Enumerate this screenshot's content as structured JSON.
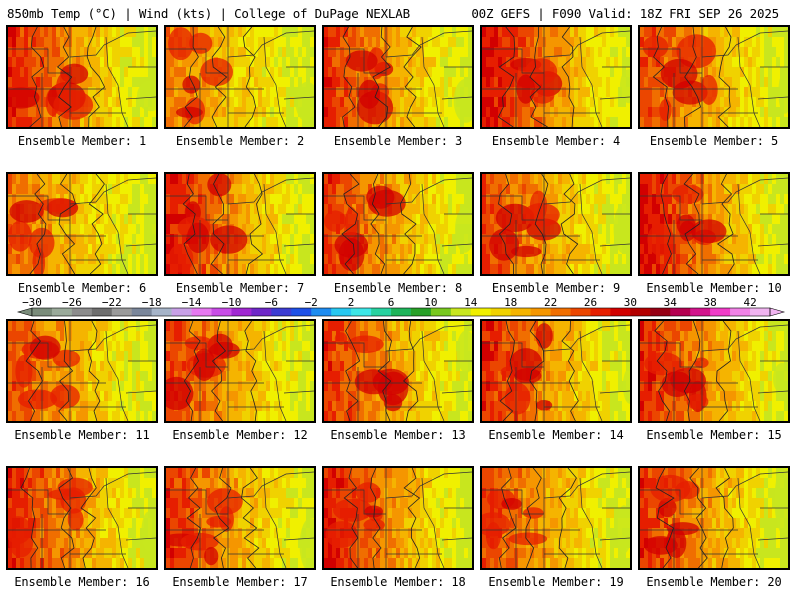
{
  "header": {
    "title_left": "850mb Temp (°C) | Wind (kts) | College of DuPage NEXLAB",
    "title_right": "00Z GEFS | F090 Valid: 18Z FRI SEP 26 2025"
  },
  "members": [
    {
      "label": "Ensemble Member: 1",
      "seed": 11,
      "warm": 0.85
    },
    {
      "label": "Ensemble Member: 2",
      "seed": 23,
      "warm": 0.55
    },
    {
      "label": "Ensemble Member: 3",
      "seed": 37,
      "warm": 0.8
    },
    {
      "label": "Ensemble Member: 4",
      "seed": 41,
      "warm": 0.95
    },
    {
      "label": "Ensemble Member: 5",
      "seed": 53,
      "warm": 0.75
    },
    {
      "label": "Ensemble Member: 6",
      "seed": 67,
      "warm": 0.6
    },
    {
      "label": "Ensemble Member: 7",
      "seed": 71,
      "warm": 0.9
    },
    {
      "label": "Ensemble Member: 8",
      "seed": 83,
      "warm": 0.8
    },
    {
      "label": "Ensemble Member: 9",
      "seed": 97,
      "warm": 0.75
    },
    {
      "label": "Ensemble Member: 10",
      "seed": 101,
      "warm": 0.95
    },
    {
      "label": "Ensemble Member: 11",
      "seed": 113,
      "warm": 0.7
    },
    {
      "label": "Ensemble Member: 12",
      "seed": 127,
      "warm": 0.75
    },
    {
      "label": "Ensemble Member: 13",
      "seed": 131,
      "warm": 0.8
    },
    {
      "label": "Ensemble Member: 14",
      "seed": 149,
      "warm": 0.85
    },
    {
      "label": "Ensemble Member: 15",
      "seed": 151,
      "warm": 0.85
    },
    {
      "label": "Ensemble Member: 16",
      "seed": 163,
      "warm": 0.85
    },
    {
      "label": "Ensemble Member: 17",
      "seed": 173,
      "warm": 0.8
    },
    {
      "label": "Ensemble Member: 18",
      "seed": 181,
      "warm": 0.9
    },
    {
      "label": "Ensemble Member: 19",
      "seed": 191,
      "warm": 0.75
    },
    {
      "label": "Ensemble Member: 20",
      "seed": 199,
      "warm": 0.8
    }
  ],
  "colorbar": {
    "ticks": [
      "−30",
      "−26",
      "−22",
      "−18",
      "−14",
      "−10",
      "−6",
      "−2",
      "2",
      "6",
      "10",
      "14",
      "18",
      "22",
      "26",
      "30",
      "34",
      "38",
      "42"
    ],
    "colors": [
      "#7a8c7a",
      "#9aaa9a",
      "#8c8c8c",
      "#6e6e6e",
      "#9a9a9a",
      "#7a869a",
      "#a6b4c8",
      "#c8a0e6",
      "#e678f0",
      "#c84ce6",
      "#a028d2",
      "#6e28c8",
      "#3c3cd2",
      "#1e50e6",
      "#1e8cf0",
      "#28c8f0",
      "#3ce6e6",
      "#28d2a0",
      "#1eb45a",
      "#28a028",
      "#78c81e",
      "#c8e61e",
      "#f0f000",
      "#f0d200",
      "#f5b400",
      "#f59600",
      "#f06e00",
      "#eb4600",
      "#e61e00",
      "#d20000",
      "#b40000",
      "#960014",
      "#b40050",
      "#d2148c",
      "#f03cc8",
      "#f082e6",
      "#f0b4f0"
    ],
    "temps": [
      14,
      18,
      22,
      26,
      30
    ]
  }
}
